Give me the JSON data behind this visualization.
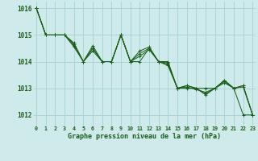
{
  "title": "Graphe pression niveau de la mer (hPa)",
  "bg_color": "#ceeaea",
  "grid_color": "#aad4d4",
  "line_color": "#1a5c1a",
  "xlim": [
    -0.3,
    23.3
  ],
  "ylim": [
    1011.6,
    1016.25
  ],
  "yticks": [
    1012,
    1013,
    1014,
    1015,
    1016
  ],
  "xticks": [
    0,
    1,
    2,
    3,
    4,
    5,
    6,
    7,
    8,
    9,
    10,
    11,
    12,
    13,
    14,
    15,
    16,
    17,
    18,
    19,
    20,
    21,
    22,
    23
  ],
  "series": [
    [
      1016.0,
      1015.0,
      1015.0,
      1015.0,
      1014.7,
      1014.0,
      1014.5,
      1014.0,
      1014.0,
      1015.0,
      1014.0,
      1014.0,
      1014.5,
      1014.0,
      1014.0,
      1013.0,
      1013.0,
      1013.0,
      1013.0,
      1013.0,
      1013.3,
      1013.0,
      1012.0,
      1012.0
    ],
    [
      1016.0,
      1015.0,
      1015.0,
      1015.0,
      1014.65,
      1014.0,
      1014.4,
      1014.0,
      1014.0,
      1015.0,
      1014.0,
      1014.2,
      1014.45,
      1014.0,
      1013.85,
      1013.0,
      1013.05,
      1012.95,
      1012.85,
      1013.0,
      1013.2,
      1013.0,
      1013.05,
      1012.0
    ],
    [
      1016.0,
      1015.0,
      1015.0,
      1015.0,
      1014.6,
      1014.0,
      1014.5,
      1014.0,
      1014.0,
      1015.0,
      1014.0,
      1014.3,
      1014.5,
      1014.0,
      1013.9,
      1013.0,
      1013.1,
      1013.0,
      1012.8,
      1013.0,
      1013.25,
      1013.0,
      1013.1,
      1012.0
    ],
    [
      1016.0,
      1015.0,
      1015.0,
      1015.0,
      1014.55,
      1014.0,
      1014.6,
      1014.0,
      1014.0,
      1015.0,
      1014.0,
      1014.4,
      1014.55,
      1014.0,
      1013.95,
      1013.0,
      1013.1,
      1013.0,
      1012.75,
      1013.0,
      1013.3,
      1013.0,
      1013.1,
      1012.0
    ]
  ]
}
